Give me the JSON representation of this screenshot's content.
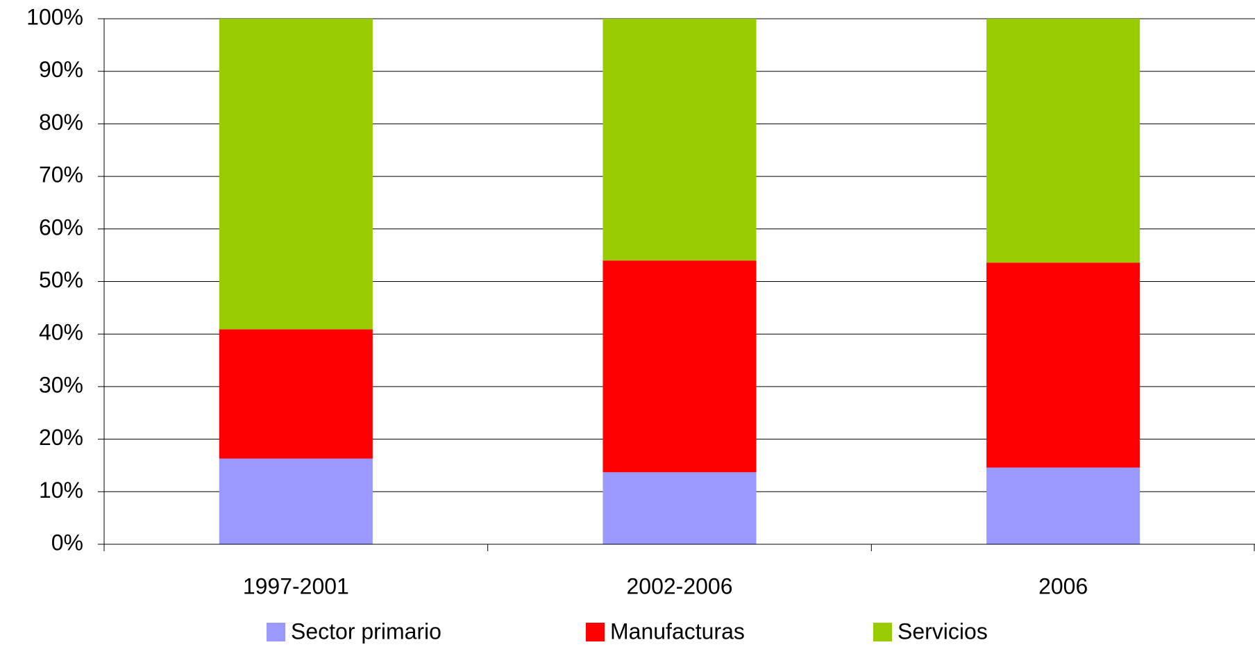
{
  "chart_data": {
    "type": "stacked_bar",
    "categories": [
      "1997-2001",
      "2002-2006",
      "2006"
    ],
    "series": [
      {
        "name": "Sector primario",
        "color": "#9999ff",
        "values": [
          16.3,
          13.7,
          14.6
        ]
      },
      {
        "name": "Manufacturas",
        "color": "#ff0000",
        "values": [
          24.6,
          40.3,
          39.0
        ]
      },
      {
        "name": "Servicios",
        "color": "#99cc00",
        "values": [
          59.1,
          46.0,
          46.4
        ]
      }
    ],
    "ylim": [
      0,
      100
    ],
    "yticks": [
      {
        "value": 0,
        "label": "0%"
      },
      {
        "value": 10,
        "label": "10%"
      },
      {
        "value": 20,
        "label": "20%"
      },
      {
        "value": 30,
        "label": "30%"
      },
      {
        "value": 40,
        "label": "40%"
      },
      {
        "value": 50,
        "label": "50%"
      },
      {
        "value": 60,
        "label": "60%"
      },
      {
        "value": 70,
        "label": "70%"
      },
      {
        "value": 80,
        "label": "80%"
      },
      {
        "value": 90,
        "label": "90%"
      },
      {
        "value": 100,
        "label": "100%"
      }
    ],
    "grid": true,
    "legend": "bottom"
  }
}
